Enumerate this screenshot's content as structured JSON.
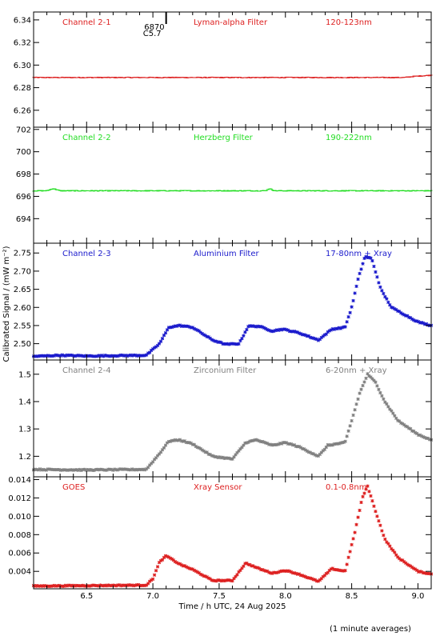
{
  "chart_data": {
    "type": "scatter",
    "x_axis": {
      "label": "Time / h UTC, 24 Aug 2025",
      "range": [
        6.1,
        9.1
      ],
      "ticks": [
        6.5,
        7.0,
        7.5,
        8.0,
        8.5,
        9.0
      ],
      "tick_labels": [
        "6.5",
        "7.0",
        "7.5",
        "8.0",
        "8.5",
        "9.0"
      ]
    },
    "y_axis_label": "Calibrated Signal / (mW m⁻²)",
    "footnote": "(1 minute averages)",
    "marker_annotation": {
      "x": 7.1,
      "labels": [
        "6870",
        "C5.7"
      ]
    },
    "panels": [
      {
        "channel": "Channel 2-1",
        "filter": "Lyman-alpha Filter",
        "band": "120-123nm",
        "color": "#dd2020",
        "ylim": [
          6.245,
          6.347
        ],
        "yticks": [
          6.26,
          6.28,
          6.3,
          6.32,
          6.34
        ],
        "ytick_labels": [
          "6.26",
          "6.28",
          "6.30",
          "6.32",
          "6.34"
        ],
        "knots": [
          [
            6.1,
            6.289
          ],
          [
            8.9,
            6.289
          ],
          [
            8.97,
            6.29
          ],
          [
            9.1,
            6.291
          ]
        ],
        "noise": 0.0004
      },
      {
        "channel": "Channel 2-2",
        "filter": "Herzberg Filter",
        "band": "190-222nm",
        "color": "#22dd22",
        "ylim": [
          691.8,
          702.2
        ],
        "yticks": [
          694,
          696,
          698,
          700,
          702
        ],
        "ytick_labels": [
          "694",
          "696",
          "698",
          "700",
          "702"
        ],
        "knots": [
          [
            6.1,
            696.5
          ],
          [
            6.2,
            696.5
          ],
          [
            6.25,
            696.7
          ],
          [
            6.3,
            696.5
          ],
          [
            7.85,
            696.5
          ],
          [
            7.88,
            696.7
          ],
          [
            7.92,
            696.5
          ],
          [
            9.1,
            696.5
          ]
        ],
        "noise": 0.04
      },
      {
        "channel": "Channel 2-3",
        "filter": "Aluminium Filter",
        "band": "17-80nm + Xray",
        "color": "#1a1acc",
        "ylim": [
          2.455,
          2.777
        ],
        "yticks": [
          2.5,
          2.55,
          2.6,
          2.65,
          2.7,
          2.75
        ],
        "ytick_labels": [
          "2.50",
          "2.55",
          "2.60",
          "2.65",
          "2.70",
          "2.75"
        ],
        "knots": [
          [
            6.1,
            2.465
          ],
          [
            6.3,
            2.468
          ],
          [
            6.5,
            2.466
          ],
          [
            6.95,
            2.468
          ],
          [
            7.05,
            2.5
          ],
          [
            7.12,
            2.545
          ],
          [
            7.2,
            2.55
          ],
          [
            7.3,
            2.545
          ],
          [
            7.45,
            2.51
          ],
          [
            7.55,
            2.498
          ],
          [
            7.65,
            2.5
          ],
          [
            7.72,
            2.548
          ],
          [
            7.8,
            2.548
          ],
          [
            7.9,
            2.535
          ],
          [
            7.98,
            2.54
          ],
          [
            8.1,
            2.53
          ],
          [
            8.25,
            2.51
          ],
          [
            8.35,
            2.54
          ],
          [
            8.45,
            2.545
          ],
          [
            8.5,
            2.6
          ],
          [
            8.55,
            2.68
          ],
          [
            8.6,
            2.74
          ],
          [
            8.65,
            2.735
          ],
          [
            8.72,
            2.65
          ],
          [
            8.8,
            2.6
          ],
          [
            8.9,
            2.58
          ],
          [
            9.0,
            2.56
          ],
          [
            9.1,
            2.55
          ]
        ],
        "noise": 0.0015
      },
      {
        "channel": "Channel 2-4",
        "filter": "Zirconium Filter",
        "band": "6-20nm + Xray",
        "color": "#808080",
        "ylim": [
          1.125,
          1.552
        ],
        "yticks": [
          1.2,
          1.3,
          1.4,
          1.5
        ],
        "ytick_labels": [
          "1.2",
          "1.3",
          "1.4",
          "1.5"
        ],
        "knots": [
          [
            6.1,
            1.152
          ],
          [
            6.5,
            1.15
          ],
          [
            6.95,
            1.152
          ],
          [
            7.05,
            1.21
          ],
          [
            7.12,
            1.255
          ],
          [
            7.2,
            1.26
          ],
          [
            7.3,
            1.245
          ],
          [
            7.45,
            1.2
          ],
          [
            7.6,
            1.19
          ],
          [
            7.7,
            1.25
          ],
          [
            7.78,
            1.26
          ],
          [
            7.9,
            1.24
          ],
          [
            8.0,
            1.25
          ],
          [
            8.1,
            1.235
          ],
          [
            8.25,
            1.2
          ],
          [
            8.32,
            1.24
          ],
          [
            8.45,
            1.25
          ],
          [
            8.5,
            1.33
          ],
          [
            8.56,
            1.43
          ],
          [
            8.62,
            1.5
          ],
          [
            8.68,
            1.47
          ],
          [
            8.75,
            1.4
          ],
          [
            8.85,
            1.33
          ],
          [
            9.0,
            1.28
          ],
          [
            9.1,
            1.26
          ]
        ],
        "noise": 0.002
      },
      {
        "channel": "GOES",
        "filter": "Xray Sensor",
        "band": "0.1-0.8nm",
        "color": "#dd2020",
        "ylim": [
          0.0021,
          0.0143
        ],
        "yticks": [
          0.004,
          0.006,
          0.008,
          0.01,
          0.012,
          0.014
        ],
        "ytick_labels": [
          "0.004",
          "0.006",
          "0.008",
          "0.010",
          "0.012",
          "0.014"
        ],
        "knots": [
          [
            6.1,
            0.0024
          ],
          [
            6.95,
            0.0025
          ],
          [
            7.0,
            0.0032
          ],
          [
            7.05,
            0.005
          ],
          [
            7.1,
            0.0057
          ],
          [
            7.2,
            0.0048
          ],
          [
            7.3,
            0.0042
          ],
          [
            7.45,
            0.003
          ],
          [
            7.6,
            0.003
          ],
          [
            7.7,
            0.0049
          ],
          [
            7.8,
            0.0043
          ],
          [
            7.9,
            0.0038
          ],
          [
            8.0,
            0.0041
          ],
          [
            8.1,
            0.0037
          ],
          [
            8.25,
            0.0029
          ],
          [
            8.35,
            0.0043
          ],
          [
            8.45,
            0.004
          ],
          [
            8.52,
            0.008
          ],
          [
            8.58,
            0.012
          ],
          [
            8.62,
            0.0133
          ],
          [
            8.67,
            0.011
          ],
          [
            8.75,
            0.0075
          ],
          [
            8.85,
            0.0055
          ],
          [
            9.0,
            0.004
          ],
          [
            9.1,
            0.0037
          ]
        ],
        "noise": 5e-05
      }
    ]
  }
}
